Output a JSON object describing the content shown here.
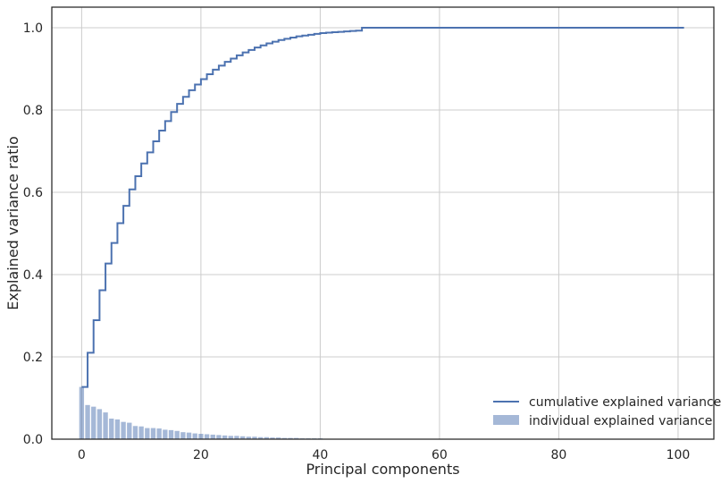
{
  "chart_data": {
    "type": "bar",
    "xlabel": "Principal components",
    "ylabel": "Explained variance ratio",
    "xlim": [
      -5,
      106
    ],
    "ylim": [
      0,
      1.05
    ],
    "xticks": [
      0,
      20,
      40,
      60,
      80,
      100
    ],
    "yticks": [
      0.0,
      0.2,
      0.4,
      0.6,
      0.8,
      1.0
    ],
    "xtick_labels": [
      "0",
      "20",
      "40",
      "60",
      "80",
      "100"
    ],
    "ytick_labels": [
      "0.0",
      "0.2",
      "0.4",
      "0.6",
      "0.8",
      "1.0"
    ],
    "grid": true,
    "legend_position": "bottom-right",
    "series": [
      {
        "name": "individual explained variance",
        "kind": "bar",
        "x": [
          0,
          1,
          2,
          3,
          4,
          5,
          6,
          7,
          8,
          9,
          10,
          11,
          12,
          13,
          14,
          15,
          16,
          17,
          18,
          19,
          20,
          21,
          22,
          23,
          24,
          25,
          26,
          27,
          28,
          29,
          30,
          31,
          32,
          33,
          34,
          35,
          36,
          37,
          38,
          39,
          40,
          41,
          42,
          43,
          44,
          45,
          46
        ],
        "values": [
          0.127,
          0.083,
          0.079,
          0.073,
          0.065,
          0.05,
          0.048,
          0.042,
          0.04,
          0.032,
          0.031,
          0.027,
          0.027,
          0.026,
          0.023,
          0.022,
          0.02,
          0.017,
          0.016,
          0.014,
          0.013,
          0.012,
          0.011,
          0.01,
          0.009,
          0.008,
          0.008,
          0.007,
          0.006,
          0.006,
          0.005,
          0.005,
          0.004,
          0.004,
          0.003,
          0.003,
          0.003,
          0.002,
          0.002,
          0.002,
          0.002,
          0.001,
          0.001,
          0.001,
          0.001,
          0.001,
          0.001
        ],
        "color": "#4c72b0"
      },
      {
        "name": "cumulative explained variance",
        "kind": "step",
        "x": [
          0,
          1,
          2,
          3,
          4,
          5,
          6,
          7,
          8,
          9,
          10,
          11,
          12,
          13,
          14,
          15,
          16,
          17,
          18,
          19,
          20,
          21,
          22,
          23,
          24,
          25,
          26,
          27,
          28,
          29,
          30,
          31,
          32,
          33,
          34,
          35,
          36,
          37,
          38,
          39,
          40,
          41,
          42,
          43,
          44,
          45,
          46,
          47,
          101
        ],
        "values": [
          0.127,
          0.21,
          0.289,
          0.362,
          0.427,
          0.477,
          0.525,
          0.567,
          0.607,
          0.639,
          0.67,
          0.697,
          0.724,
          0.75,
          0.773,
          0.795,
          0.815,
          0.832,
          0.848,
          0.862,
          0.875,
          0.887,
          0.898,
          0.908,
          0.917,
          0.925,
          0.933,
          0.94,
          0.946,
          0.952,
          0.957,
          0.962,
          0.966,
          0.97,
          0.973,
          0.976,
          0.979,
          0.981,
          0.983,
          0.985,
          0.987,
          0.988,
          0.989,
          0.99,
          0.991,
          0.992,
          0.993,
          1.0,
          1.0
        ],
        "color": "#4c72b0"
      }
    ]
  }
}
